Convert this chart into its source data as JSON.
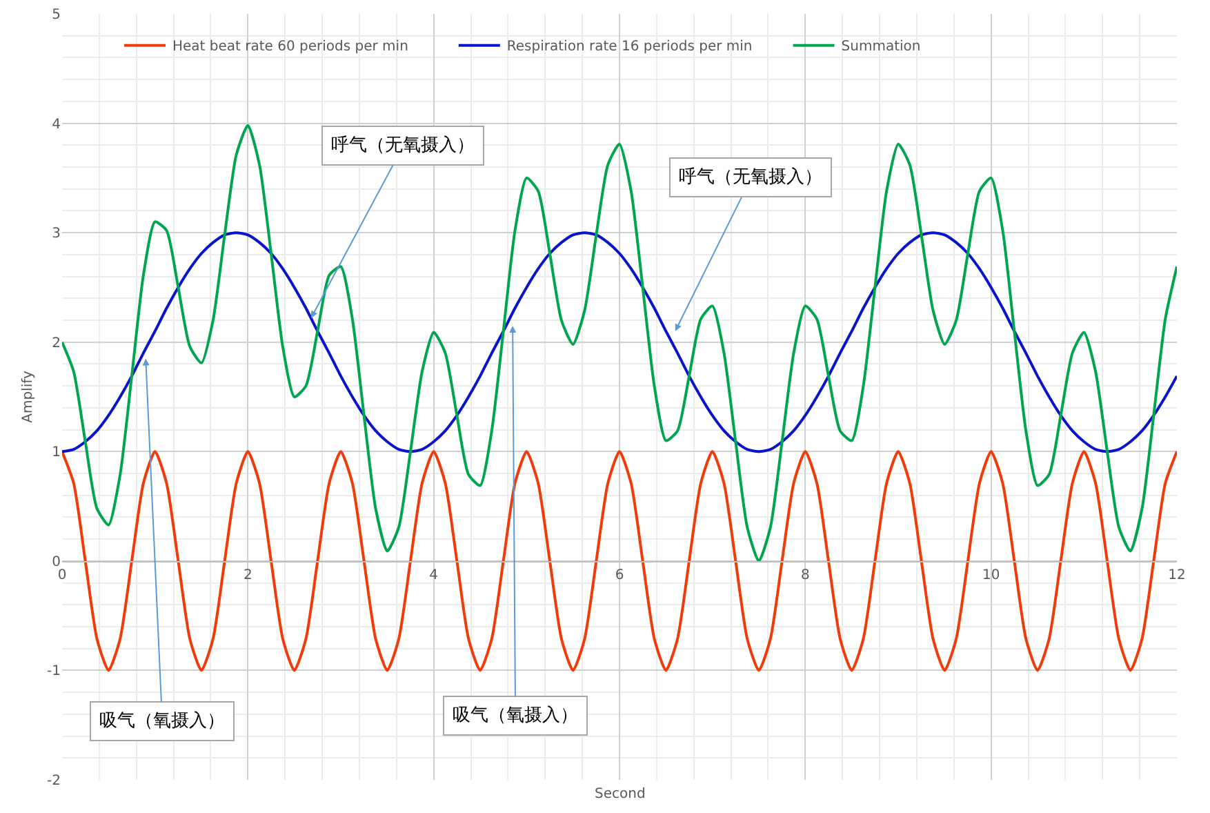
{
  "chart_data": {
    "type": "line",
    "xlabel": "Second",
    "ylabel": "Amplify",
    "x": [
      0,
      0.125,
      0.25,
      0.375,
      0.5,
      0.625,
      0.75,
      0.875,
      1,
      1.125,
      1.25,
      1.375,
      1.5,
      1.625,
      1.75,
      1.875,
      2,
      2.125,
      2.25,
      2.375,
      2.5,
      2.625,
      2.75,
      2.875,
      3,
      3.125,
      3.25,
      3.375,
      3.5,
      3.625,
      3.75,
      3.875,
      4,
      4.125,
      4.25,
      4.375,
      4.5,
      4.625,
      4.75,
      4.875,
      5,
      5.125,
      5.25,
      5.375,
      5.5,
      5.625,
      5.75,
      5.875,
      6,
      6.125,
      6.25,
      6.375,
      6.5,
      6.625,
      6.75,
      6.875,
      7,
      7.125,
      7.25,
      7.375,
      7.5,
      7.625,
      7.75,
      7.875,
      8,
      8.125,
      8.25,
      8.375,
      8.5,
      8.625,
      8.75,
      8.875,
      9,
      9.125,
      9.25,
      9.375,
      9.5,
      9.625,
      9.75,
      9.875,
      10,
      10.125,
      10.25,
      10.375,
      10.5,
      10.625,
      10.75,
      10.875,
      11,
      11.125,
      11.25,
      11.375,
      11.5,
      11.625,
      11.75,
      11.875,
      12
    ],
    "series": [
      {
        "name": "Heat beat rate 60 periods per min",
        "color": "#f03c0a",
        "values": [
          1,
          0.71,
          0,
          -0.71,
          -1,
          -0.71,
          0,
          0.71,
          1,
          0.71,
          0,
          -0.71,
          -1,
          -0.71,
          0,
          0.71,
          1,
          0.71,
          0,
          -0.71,
          -1,
          -0.71,
          0,
          0.71,
          1,
          0.71,
          0,
          -0.71,
          -1,
          -0.71,
          0,
          0.71,
          1,
          0.71,
          0,
          -0.71,
          -1,
          -0.71,
          0,
          0.71,
          1,
          0.71,
          0,
          -0.71,
          -1,
          -0.71,
          0,
          0.71,
          1,
          0.71,
          0,
          -0.71,
          -1,
          -0.71,
          0,
          0.71,
          1,
          0.71,
          0,
          -0.71,
          -1,
          -0.71,
          0,
          0.71,
          1,
          0.71,
          0,
          -0.71,
          -1,
          -0.71,
          0,
          0.71,
          1,
          0.71,
          0,
          -0.71,
          -1,
          -0.71,
          0,
          0.71,
          1,
          0.71,
          0,
          -0.71,
          -1,
          -0.71,
          0,
          0.71,
          1,
          0.71,
          0,
          -0.71,
          -1,
          -0.71,
          0,
          0.71,
          1
        ]
      },
      {
        "name": "Respiration rate 16 periods per min",
        "color": "#0a14c8",
        "values": [
          1,
          1.02,
          1.09,
          1.19,
          1.33,
          1.5,
          1.69,
          1.9,
          2.1,
          2.31,
          2.5,
          2.67,
          2.81,
          2.91,
          2.98,
          3,
          2.98,
          2.91,
          2.81,
          2.67,
          2.5,
          2.31,
          2.1,
          1.9,
          1.69,
          1.5,
          1.33,
          1.19,
          1.09,
          1.02,
          1,
          1.02,
          1.09,
          1.19,
          1.33,
          1.5,
          1.69,
          1.9,
          2.1,
          2.31,
          2.5,
          2.67,
          2.81,
          2.91,
          2.98,
          3,
          2.98,
          2.91,
          2.81,
          2.67,
          2.5,
          2.31,
          2.1,
          1.9,
          1.69,
          1.5,
          1.33,
          1.19,
          1.09,
          1.02,
          1,
          1.02,
          1.09,
          1.19,
          1.33,
          1.5,
          1.69,
          1.9,
          2.1,
          2.31,
          2.5,
          2.67,
          2.81,
          2.91,
          2.98,
          3,
          2.98,
          2.91,
          2.81,
          2.67,
          2.5,
          2.31,
          2.1,
          1.9,
          1.69,
          1.5,
          1.33,
          1.19,
          1.09,
          1.02,
          1,
          1.02,
          1.09,
          1.19,
          1.33,
          1.5,
          1.69
        ]
      },
      {
        "name": "Summation",
        "color": "#00a550",
        "values": [
          2,
          1.73,
          1.09,
          0.48,
          0.33,
          0.79,
          1.69,
          2.61,
          3.1,
          3.02,
          2.5,
          1.96,
          1.81,
          2.2,
          2.98,
          3.71,
          3.98,
          3.62,
          2.81,
          1.96,
          1.5,
          1.6,
          2.1,
          2.61,
          2.69,
          2.21,
          1.33,
          0.48,
          0.09,
          0.31,
          1,
          1.73,
          2.09,
          1.9,
          1.33,
          0.79,
          0.69,
          1.19,
          2.1,
          3.02,
          3.5,
          3.38,
          2.81,
          2.2,
          1.98,
          2.29,
          2.98,
          3.62,
          3.81,
          3.38,
          2.5,
          1.6,
          1.1,
          1.19,
          1.69,
          2.21,
          2.33,
          1.9,
          1.09,
          0.31,
          0,
          0.31,
          1.09,
          1.9,
          2.33,
          2.21,
          1.69,
          1.19,
          1.1,
          1.6,
          2.5,
          3.38,
          3.81,
          3.62,
          2.98,
          2.29,
          1.98,
          2.2,
          2.81,
          3.38,
          3.5,
          3.02,
          2.1,
          1.19,
          0.69,
          0.79,
          1.33,
          1.9,
          2.09,
          1.73,
          1,
          0.31,
          0.09,
          0.48,
          1.33,
          2.21,
          2.69
        ]
      }
    ],
    "annotations": [
      {
        "text": "呼气（无氧摄入）",
        "x": 2.68,
        "y": 2.22
      },
      {
        "text": "呼气（无氧摄入）",
        "x": 6.6,
        "y": 2.1
      },
      {
        "text": "吸气（氧摄入）",
        "x": 0.9,
        "y": 1.85
      },
      {
        "text": "吸气（氧摄入）",
        "x": 4.85,
        "y": 2.15
      }
    ],
    "xlim": [
      0,
      12
    ],
    "xticks": [
      0,
      2,
      4,
      6,
      8,
      10,
      12
    ],
    "ylim": [
      -2,
      5
    ],
    "yticks": [
      -2,
      -1,
      0,
      1,
      2,
      3,
      4,
      5
    ],
    "grid": true,
    "legend": "top",
    "marker": "none",
    "line_style": "solid"
  }
}
